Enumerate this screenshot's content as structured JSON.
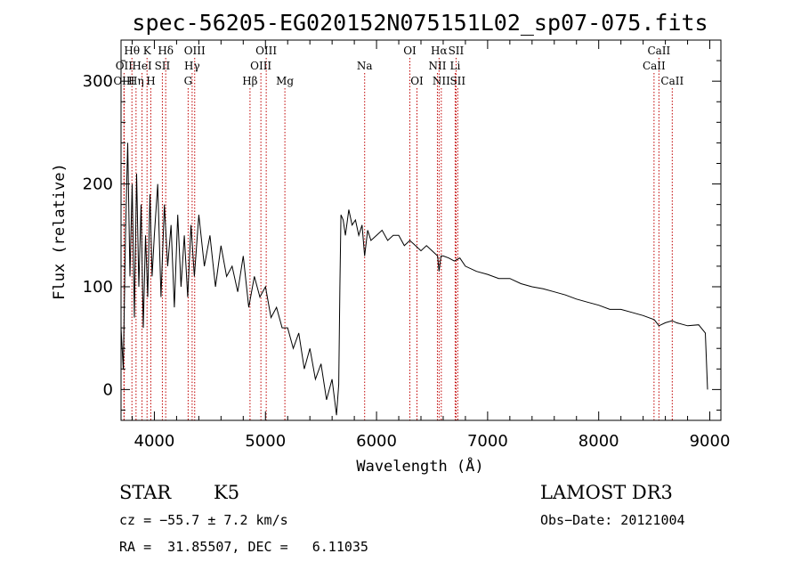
{
  "chart_data": {
    "type": "line",
    "title": "spec-56205-EG020152N075151L02_sp07-075.fits",
    "xlabel": "Wavelength (Å)",
    "ylabel": "Flux (relative)",
    "xlim": [
      3700,
      9100
    ],
    "ylim": [
      -30,
      340
    ],
    "xticks": [
      4000,
      5000,
      6000,
      7000,
      8000,
      9000
    ],
    "xtick_labels": [
      "4000",
      "5000",
      "6000",
      "7000",
      "8000",
      "9000"
    ],
    "yticks": [
      0,
      100,
      200,
      300
    ],
    "ytick_labels": [
      "0",
      "100",
      "200",
      "300"
    ],
    "lines": [
      {
        "label": "Hθ",
        "x": 3798,
        "row": 1
      },
      {
        "label": "K",
        "x": 3934,
        "row": 1
      },
      {
        "label": "Hδ",
        "x": 4102,
        "row": 1
      },
      {
        "label": "OIII",
        "x": 4363,
        "row": 1
      },
      {
        "label": "OIII",
        "x": 5007,
        "row": 1
      },
      {
        "label": "OI",
        "x": 6300,
        "row": 1
      },
      {
        "label": "Hα",
        "x": 6563,
        "row": 1
      },
      {
        "label": "SII",
        "x": 6716,
        "row": 1
      },
      {
        "label": "CaII",
        "x": 8542,
        "row": 1
      },
      {
        "label": "OII",
        "x": 3727,
        "row": 2
      },
      {
        "label": "HeI",
        "x": 3889,
        "row": 2
      },
      {
        "label": "SII",
        "x": 4072,
        "row": 2
      },
      {
        "label": "Hγ",
        "x": 4340,
        "row": 2
      },
      {
        "label": "OIII",
        "x": 4959,
        "row": 2
      },
      {
        "label": "Na",
        "x": 5893,
        "row": 2
      },
      {
        "label": "NII",
        "x": 6548,
        "row": 2
      },
      {
        "label": "Li",
        "x": 6708,
        "row": 2
      },
      {
        "label": "CaII",
        "x": 8498,
        "row": 2
      },
      {
        "label": "OIII",
        "x": 3727,
        "row": 3
      },
      {
        "label": "Hη",
        "x": 3835,
        "row": 3
      },
      {
        "label": "H",
        "x": 3968,
        "row": 3
      },
      {
        "label": "G",
        "x": 4304,
        "row": 3
      },
      {
        "label": "Hβ",
        "x": 4861,
        "row": 3
      },
      {
        "label": "Mg",
        "x": 5175,
        "row": 3
      },
      {
        "label": "OI",
        "x": 6364,
        "row": 3
      },
      {
        "label": "NII",
        "x": 6583,
        "row": 3
      },
      {
        "label": "SII",
        "x": 6731,
        "row": 3
      },
      {
        "label": "CaII",
        "x": 8662,
        "row": 3
      }
    ],
    "series": [
      {
        "name": "flux",
        "x": [
          3700,
          3720,
          3740,
          3760,
          3780,
          3800,
          3820,
          3840,
          3860,
          3880,
          3900,
          3920,
          3940,
          3960,
          3980,
          4000,
          4030,
          4060,
          4090,
          4120,
          4150,
          4180,
          4210,
          4240,
          4270,
          4300,
          4330,
          4360,
          4400,
          4450,
          4500,
          4550,
          4600,
          4650,
          4700,
          4750,
          4800,
          4850,
          4900,
          4950,
          5000,
          5050,
          5100,
          5150,
          5200,
          5250,
          5300,
          5350,
          5400,
          5450,
          5500,
          5550,
          5600,
          5640,
          5660,
          5670,
          5680,
          5700,
          5720,
          5750,
          5780,
          5810,
          5840,
          5870,
          5893,
          5920,
          5950,
          6000,
          6050,
          6100,
          6150,
          6200,
          6250,
          6300,
          6350,
          6400,
          6450,
          6500,
          6550,
          6563,
          6580,
          6600,
          6650,
          6700,
          6750,
          6800,
          6900,
          7000,
          7100,
          7200,
          7300,
          7400,
          7500,
          7600,
          7700,
          7800,
          7900,
          8000,
          8100,
          8200,
          8300,
          8400,
          8500,
          8542,
          8600,
          8662,
          8700,
          8800,
          8900,
          8960,
          8980
        ],
        "y": [
          60,
          20,
          150,
          240,
          110,
          200,
          70,
          210,
          100,
          180,
          60,
          150,
          90,
          190,
          110,
          150,
          200,
          90,
          180,
          120,
          160,
          80,
          170,
          100,
          150,
          90,
          160,
          110,
          170,
          120,
          150,
          100,
          140,
          110,
          120,
          95,
          130,
          80,
          110,
          90,
          100,
          70,
          80,
          60,
          60,
          40,
          55,
          20,
          40,
          10,
          25,
          -10,
          10,
          -25,
          5,
          100,
          170,
          165,
          150,
          175,
          160,
          165,
          150,
          160,
          130,
          155,
          145,
          150,
          155,
          145,
          150,
          150,
          140,
          145,
          140,
          135,
          140,
          135,
          130,
          115,
          130,
          130,
          128,
          125,
          128,
          120,
          115,
          112,
          108,
          108,
          103,
          100,
          98,
          95,
          92,
          88,
          85,
          82,
          78,
          78,
          75,
          72,
          68,
          62,
          65,
          67,
          65,
          62,
          63,
          55,
          0
        ]
      }
    ]
  },
  "footer": {
    "object_class": "STAR",
    "subclass": "K5",
    "survey": "LAMOST DR3",
    "redshift": "cz = −55.7 ± 7.2 km/s",
    "obs_date": "Obs−Date: 20121004",
    "coords": "RA =  31.85507, DEC =   6.11035"
  }
}
